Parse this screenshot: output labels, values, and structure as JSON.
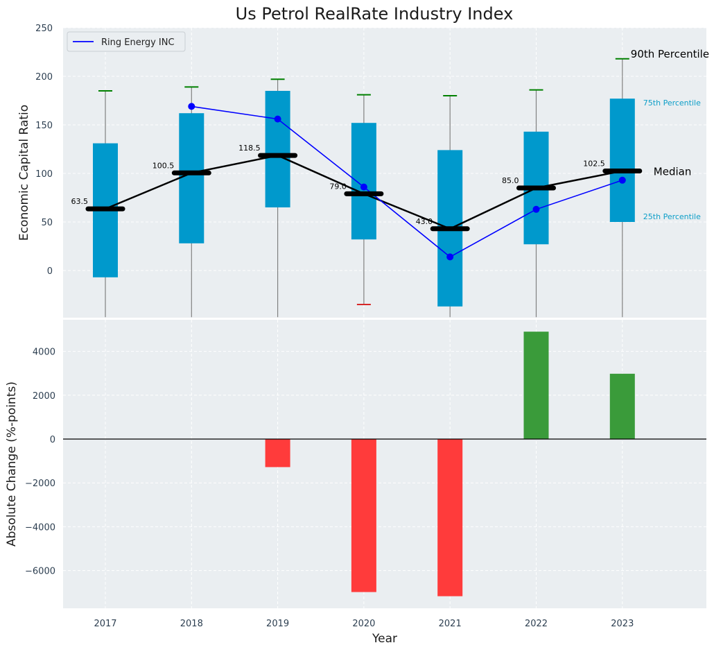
{
  "chart_data": [
    {
      "type": "box",
      "title": "Us Petrol RealRate Industry Index",
      "ylabel": "Economic Capital Ratio",
      "xlabel": "",
      "ylim": [
        -48,
        250
      ],
      "yticks": [
        0,
        50,
        100,
        150,
        200,
        250
      ],
      "categories": [
        "2017",
        "2018",
        "2019",
        "2020",
        "2021",
        "2022",
        "2023"
      ],
      "percentiles": {
        "p10": [
          -48,
          -48,
          -48,
          -35,
          -48,
          -48,
          -48
        ],
        "p25": [
          -7,
          28,
          65,
          32,
          -37,
          27,
          50
        ],
        "median": [
          63.5,
          100.5,
          118.5,
          79.0,
          43.0,
          85.0,
          102.5
        ],
        "p75": [
          131,
          162,
          185,
          152,
          124,
          143,
          177
        ],
        "p90": [
          185,
          189,
          197,
          181,
          180,
          186,
          218
        ]
      },
      "median_labels": [
        "63.5",
        "100.5",
        "118.5",
        "79.0",
        "43.0",
        "85.0",
        "102.5"
      ],
      "low_whisker_color": [
        "",
        "",
        "",
        "#d62728",
        "",
        "",
        ""
      ],
      "series": [
        {
          "name": "Ring Energy INC",
          "color": "#0000ff",
          "x": [
            "2018",
            "2019",
            "2020",
            "2021",
            "2022",
            "2023"
          ],
          "values": [
            169,
            156,
            86,
            14,
            63,
            93
          ]
        }
      ],
      "legend": "top-left",
      "grid": true,
      "annotations": {
        "p90": "90th Percentile",
        "p75": "75th Percentile",
        "median": "Median",
        "p25": "25th Percentile"
      },
      "colors": {
        "box": "#0099cc",
        "median": "#000000",
        "whisker": "#808080",
        "cap_high": "#008000",
        "annot_cyan": "#0c9ec8"
      }
    },
    {
      "type": "bar",
      "xlabel": "Year",
      "ylabel": "Absolute Change (%-points)",
      "ylim": [
        -7800,
        5500
      ],
      "yticks": [
        -6000,
        -4000,
        -2000,
        0,
        2000,
        4000
      ],
      "ytick_labels": [
        "−6000",
        "−4000",
        "−2000",
        "0",
        "2000",
        "4000"
      ],
      "categories": [
        "2017",
        "2018",
        "2019",
        "2020",
        "2021",
        "2022",
        "2023"
      ],
      "values": [
        0,
        0,
        -1280,
        -6980,
        -7170,
        4900,
        2980
      ],
      "colors": {
        "positive": "#3a9b3a",
        "negative": "#ff3b3b"
      },
      "grid": true
    }
  ]
}
